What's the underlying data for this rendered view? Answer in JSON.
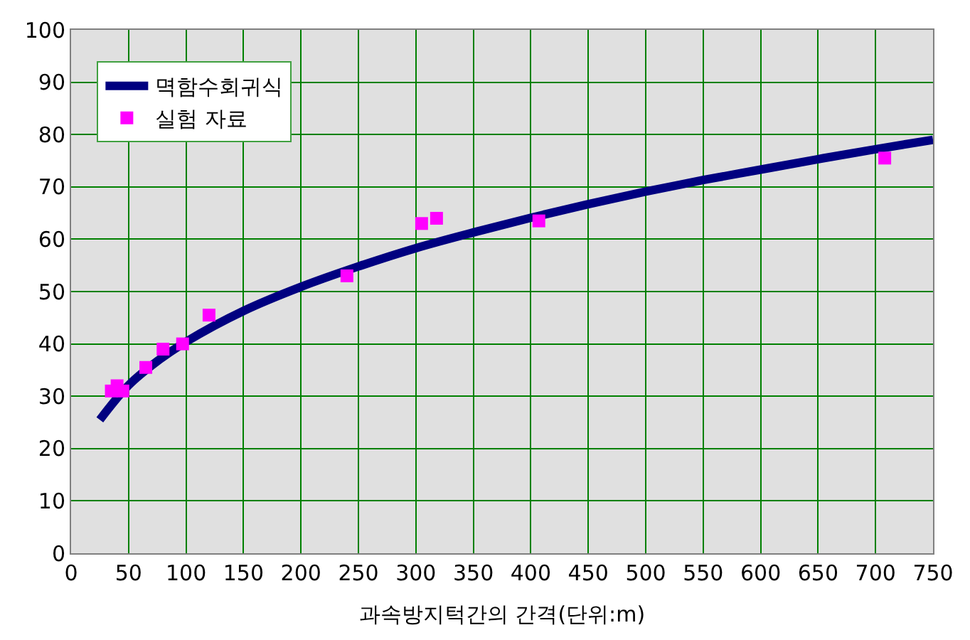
{
  "chart_data": {
    "type": "scatter",
    "xlabel": "과속방지턱간의 간격(단위:m)",
    "xlim": [
      0,
      750
    ],
    "xticks": [
      0,
      50,
      100,
      150,
      200,
      250,
      300,
      350,
      400,
      450,
      500,
      550,
      600,
      650,
      700,
      750
    ],
    "ylim": [
      0,
      100
    ],
    "yticks": [
      0,
      10,
      20,
      30,
      40,
      50,
      60,
      70,
      80,
      90,
      100
    ],
    "grid": true,
    "legend": "top left",
    "series": [
      {
        "name": "멱함수회귀식",
        "type": "line",
        "color": "#000080",
        "marker": "none",
        "line_style": "solid",
        "x": [
          25,
          50,
          75,
          100,
          150,
          200,
          250,
          300,
          350,
          400,
          450,
          500,
          550,
          600,
          650,
          700,
          750
        ],
        "values": [
          25.5,
          32.1,
          36.7,
          40.4,
          46.3,
          50.9,
          54.8,
          58.3,
          61.3,
          64.1,
          66.7,
          69.1,
          71.3,
          73.3,
          75.3,
          77.2,
          79.0
        ]
      },
      {
        "name": "실험 자료",
        "color": "#ff00ff",
        "marker": "square",
        "x": [
          35,
          40,
          45,
          65,
          80,
          97,
          120,
          240,
          305,
          318,
          407,
          708
        ],
        "values": [
          31,
          32,
          31,
          35.5,
          39,
          40,
          45.5,
          53,
          63,
          64,
          63.5,
          75.5
        ]
      }
    ]
  }
}
